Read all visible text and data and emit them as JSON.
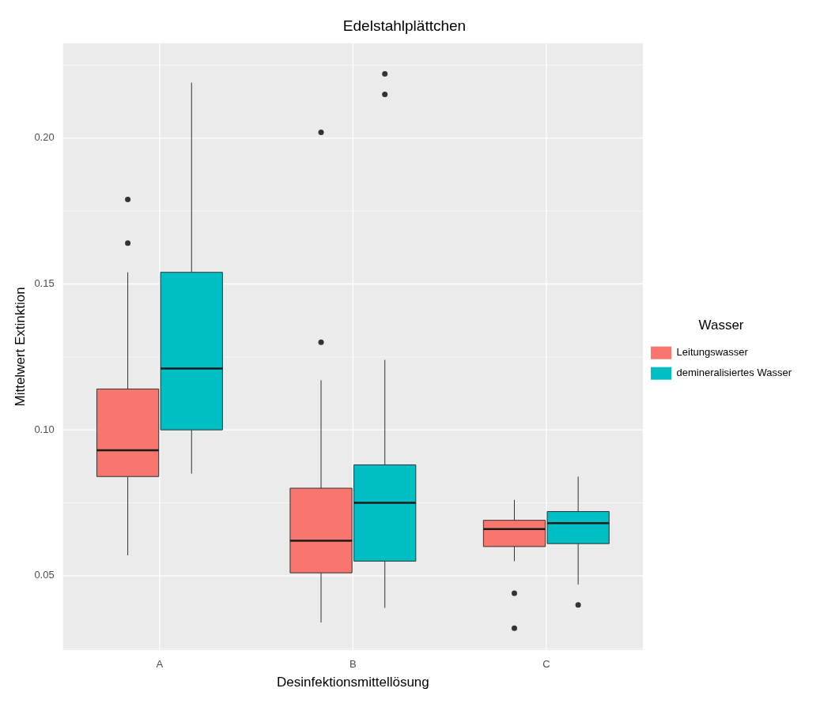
{
  "chart_data": {
    "type": "box",
    "title": "Edelstahlplättchen",
    "xlabel": "Desinfektionsmittellösung",
    "ylabel": "Mittelwert Extinktion",
    "legend_title": "Wasser",
    "legend": "right",
    "grid": true,
    "categories": [
      "A",
      "B",
      "C"
    ],
    "ylim": [
      0.0245,
      0.2325
    ],
    "yticks": [
      0.05,
      {
        "value": 0.1,
        "label": "0.10"
      },
      0.15,
      {
        "value": 0.2,
        "label": "0.20"
      }
    ],
    "series": [
      {
        "name": "Leitungswasser",
        "color": "#f8766d",
        "boxes": [
          {
            "low": 0.057,
            "q1": 0.084,
            "median": 0.093,
            "q3": 0.114,
            "high": 0.154,
            "outliers": [
              0.179,
              0.164
            ]
          },
          {
            "low": 0.034,
            "q1": 0.051,
            "median": 0.062,
            "q3": 0.08,
            "high": 0.117,
            "outliers": [
              0.13,
              0.202
            ]
          },
          {
            "low": 0.055,
            "q1": 0.06,
            "median": 0.066,
            "q3": 0.069,
            "high": 0.076,
            "outliers": [
              0.044,
              0.032
            ]
          }
        ]
      },
      {
        "name": "demineralisiertes Wasser",
        "color": "#00bfc4",
        "boxes": [
          {
            "low": 0.085,
            "q1": 0.1,
            "median": 0.121,
            "q3": 0.154,
            "high": 0.219
          },
          {
            "low": 0.039,
            "q1": 0.055,
            "median": 0.075,
            "q3": 0.088,
            "high": 0.124,
            "outliers": [
              0.222,
              0.215
            ]
          },
          {
            "low": 0.047,
            "q1": 0.061,
            "median": 0.068,
            "q3": 0.072,
            "high": 0.084,
            "outliers": [
              0.04
            ]
          }
        ]
      }
    ]
  }
}
